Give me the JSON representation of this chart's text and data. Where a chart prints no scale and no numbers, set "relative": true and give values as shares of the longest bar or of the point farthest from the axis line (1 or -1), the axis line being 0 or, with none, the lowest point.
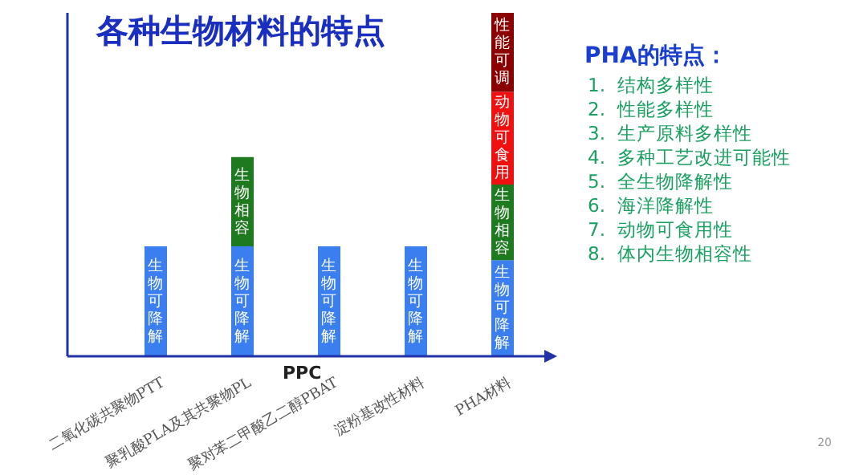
{
  "chart_data": {
    "type": "bar",
    "title": "各种生物材料的特点",
    "relative": true,
    "stacked": true,
    "legend": false,
    "grid": false,
    "categories": [
      "二氧化碳共聚物PTT",
      "聚乳酸PLA及其共聚物PL",
      "聚对苯二甲酸乙二醇PBAT",
      "淀粉基改性材料",
      "PHA材料"
    ],
    "series": [
      {
        "name": "生物可降解",
        "color": "#3a7ef0",
        "values": [
          0.32,
          0.32,
          0.32,
          0.32,
          0.28
        ]
      },
      {
        "name": "生物相容",
        "color": "#1e7a1e",
        "values": [
          null,
          0.26,
          null,
          null,
          0.22
        ]
      },
      {
        "name": "动物可食用",
        "color": "#f01010",
        "values": [
          null,
          null,
          null,
          null,
          0.27
        ]
      },
      {
        "name": "性能可调",
        "color": "#8b0000",
        "values": [
          null,
          null,
          null,
          null,
          0.23
        ]
      }
    ],
    "annotations": [
      "PPC",
      "PHA的特点：",
      "1.  结构多样性",
      "2.  性能多样性",
      "3.  生产原料多样性",
      "4.  多种工艺改进可能性",
      "5.  全生物降解性",
      "6.  海洋降解性",
      "7.  动物可食用性",
      "8.  体内生物相容性",
      "20"
    ]
  }
}
